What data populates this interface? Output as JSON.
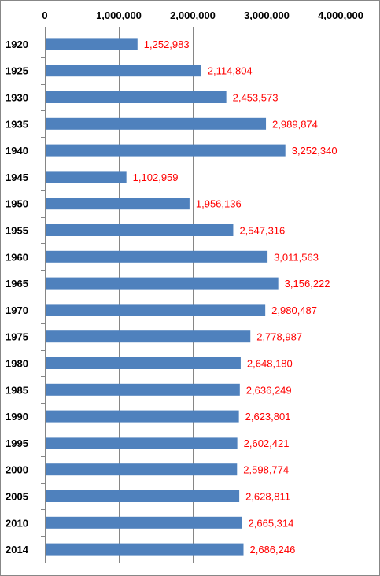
{
  "chart_data": {
    "type": "bar",
    "orientation": "horizontal",
    "categories": [
      "1920",
      "1925",
      "1930",
      "1935",
      "1940",
      "1945",
      "1950",
      "1955",
      "1960",
      "1965",
      "1970",
      "1975",
      "1980",
      "1985",
      "1990",
      "1995",
      "2000",
      "2005",
      "2010",
      "2014"
    ],
    "values": [
      1252983,
      2114804,
      2453573,
      2989874,
      3252340,
      1102959,
      1956136,
      2547316,
      3011563,
      3156222,
      2980487,
      2778987,
      2648180,
      2636249,
      2623801,
      2602421,
      2598774,
      2628811,
      2665314,
      2686246
    ],
    "data_labels": [
      "1,252,983",
      "2,114,804",
      "2,453,573",
      "2,989,874",
      "3,252,340",
      "1,102,959",
      "1,956,136",
      "2,547,316",
      "3,011,563",
      "3,156,222",
      "2,980,487",
      "2,778,987",
      "2,648,180",
      "2,636,249",
      "2,623,801",
      "2,602,421",
      "2,598,774",
      "2,628,811",
      "2,665,314",
      "2,686,246"
    ],
    "xticks": [
      0,
      1000000,
      2000000,
      3000000,
      4000000
    ],
    "xtick_labels": [
      "0",
      "1,000,000",
      "2,000,000",
      "3,000,000",
      "4,000,000"
    ],
    "xlim": [
      0,
      4000000
    ],
    "axis_position": "top",
    "grid": "vertical",
    "title": "",
    "xlabel": "",
    "ylabel": "",
    "colors": {
      "bar": "#4F81BD",
      "data_label": "#FF0000",
      "grid": "#868686",
      "frame": "#878787"
    }
  }
}
